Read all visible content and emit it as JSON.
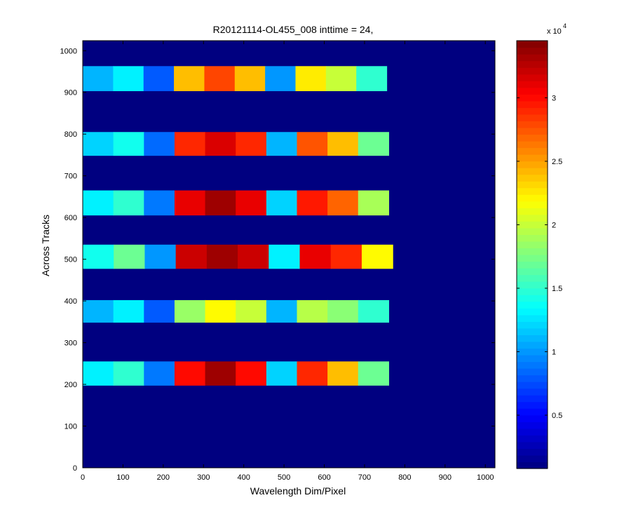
{
  "chart_data": {
    "type": "heatmap",
    "title": "R20121114-OL455_008 inttime = 24,",
    "xlabel": "Wavelength Dim/Pixel",
    "ylabel": "Across Tracks",
    "xlim": [
      0,
      1024
    ],
    "ylim": [
      0,
      1024
    ],
    "x_ticks": [
      0,
      100,
      200,
      300,
      400,
      500,
      600,
      700,
      800,
      900,
      1000
    ],
    "y_ticks": [
      0,
      100,
      200,
      300,
      400,
      500,
      600,
      700,
      800,
      900,
      1000
    ],
    "colormap": "jet",
    "colorbar": {
      "range": [
        800,
        34500
      ],
      "ticks": [
        5000,
        10000,
        15000,
        20000,
        25000,
        30000
      ],
      "tick_labels": [
        "0.5",
        "1",
        "1.5",
        "2",
        "2.5",
        "3"
      ],
      "exponent_base": "x 10",
      "exponent_power": "4"
    },
    "background_value": 800,
    "bands": [
      {
        "y0": 197,
        "y1": 255,
        "x0": 0,
        "x1": 760,
        "levels": [
          13000,
          15000,
          9000,
          30000,
          33500,
          30000,
          12000,
          29000,
          24000,
          17000
        ]
      },
      {
        "y0": 348,
        "y1": 402,
        "x0": 0,
        "x1": 760,
        "levels": [
          11000,
          13000,
          8000,
          18500,
          22000,
          20000,
          11000,
          19500,
          18000,
          15000
        ]
      },
      {
        "y0": 477,
        "y1": 535,
        "x0": 0,
        "x1": 770,
        "levels": [
          14000,
          17000,
          10000,
          32000,
          33500,
          32000,
          13000,
          31000,
          29000,
          22000
        ]
      },
      {
        "y0": 605,
        "y1": 665,
        "x0": 0,
        "x1": 760,
        "levels": [
          13000,
          15000,
          9000,
          31000,
          33500,
          31000,
          12000,
          29500,
          27000,
          19000
        ]
      },
      {
        "y0": 748,
        "y1": 805,
        "x0": 0,
        "x1": 760,
        "levels": [
          12000,
          14000,
          8500,
          29000,
          31500,
          29000,
          11000,
          27500,
          24000,
          17000
        ]
      },
      {
        "y0": 903,
        "y1": 963,
        "x0": 0,
        "x1": 755,
        "levels": [
          11000,
          13000,
          8000,
          24000,
          28000,
          24000,
          10000,
          22500,
          20000,
          15000
        ]
      }
    ]
  }
}
